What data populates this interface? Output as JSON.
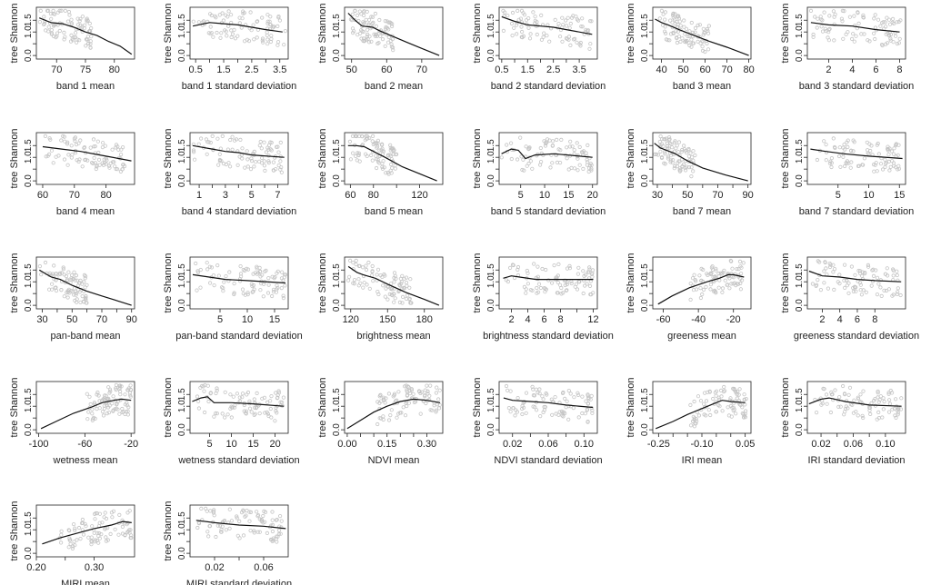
{
  "colors": {
    "points": "#c4c4c4",
    "line": "#111111",
    "axis": "#222222"
  },
  "y_label": "tree Shannon",
  "chart_data": [
    {
      "type": "scatter",
      "xlabel": "band 1 mean",
      "xticks": [
        70,
        75,
        80
      ],
      "xlim": [
        66.5,
        83.5
      ],
      "line": [
        [
          67,
          1.6
        ],
        [
          69,
          1.4
        ],
        [
          71,
          1.35
        ],
        [
          73,
          1.2
        ],
        [
          75,
          1.0
        ],
        [
          77,
          0.85
        ],
        [
          79,
          0.6
        ],
        [
          81,
          0.4
        ],
        [
          83,
          0.05
        ]
      ],
      "cloud": [
        67,
        76
      ]
    },
    {
      "type": "scatter",
      "xlabel": "band 1 standard deviation",
      "xticks": [
        0.5,
        1.5,
        2.5,
        3.5
      ],
      "xtick_labels": [
        "0.5",
        "1.5",
        "2.5",
        "3.5"
      ],
      "xtick_minor": [
        1,
        2,
        3
      ],
      "xlim": [
        0.3,
        3.8
      ],
      "line": [
        [
          0.4,
          1.25
        ],
        [
          1.0,
          1.4
        ],
        [
          1.5,
          1.35
        ],
        [
          2.0,
          1.3
        ],
        [
          2.5,
          1.2
        ],
        [
          3.0,
          1.1
        ],
        [
          3.6,
          1.0
        ]
      ],
      "cloud": [
        0.4,
        3.7
      ]
    },
    {
      "type": "scatter",
      "xlabel": "band 2 mean",
      "xticks": [
        50,
        60,
        70
      ],
      "xlim": [
        48,
        76
      ],
      "line": [
        [
          49,
          1.8
        ],
        [
          51,
          1.5
        ],
        [
          53,
          1.25
        ],
        [
          56,
          1.2
        ],
        [
          58,
          1.05
        ],
        [
          62,
          0.8
        ],
        [
          66,
          0.55
        ],
        [
          70,
          0.3
        ],
        [
          75,
          0.0
        ]
      ],
      "cloud": [
        49,
        62
      ]
    },
    {
      "type": "scatter",
      "xlabel": "band 2 standard deviation",
      "xticks": [
        0.5,
        1.5,
        2.5,
        3.5
      ],
      "xtick_labels": [
        "0.5",
        "1.5",
        "2.5",
        "3.5"
      ],
      "xtick_minor": [
        1,
        2,
        3
      ],
      "xlim": [
        0.4,
        4.2
      ],
      "line": [
        [
          0.5,
          1.65
        ],
        [
          1.0,
          1.45
        ],
        [
          1.5,
          1.3
        ],
        [
          2.0,
          1.25
        ],
        [
          2.5,
          1.2
        ],
        [
          3.0,
          1.1
        ],
        [
          4.0,
          0.9
        ]
      ],
      "cloud": [
        0.5,
        4.0
      ]
    },
    {
      "type": "scatter",
      "xlabel": "band 3 mean",
      "xticks": [
        40,
        50,
        60,
        70,
        80
      ],
      "xlim": [
        36,
        81
      ],
      "line": [
        [
          37,
          1.55
        ],
        [
          40,
          1.4
        ],
        [
          43,
          1.3
        ],
        [
          48,
          1.1
        ],
        [
          55,
          0.85
        ],
        [
          62,
          0.6
        ],
        [
          70,
          0.35
        ],
        [
          80,
          0.0
        ]
      ],
      "cloud": [
        37,
        62
      ]
    },
    {
      "type": "scatter",
      "xlabel": "band 3 standard deviation",
      "xticks": [
        2,
        4,
        6,
        8
      ],
      "xlim": [
        0.2,
        8.5
      ],
      "line": [
        [
          0.5,
          1.4
        ],
        [
          2,
          1.3
        ],
        [
          4,
          1.25
        ],
        [
          6,
          1.1
        ],
        [
          8,
          1.0
        ]
      ],
      "cloud": [
        0.5,
        8.2
      ]
    },
    {
      "type": "scatter",
      "xlabel": "band 4 mean",
      "xticks": [
        60,
        70,
        80
      ],
      "xlim": [
        58,
        89
      ],
      "line": [
        [
          60,
          1.45
        ],
        [
          66,
          1.35
        ],
        [
          72,
          1.25
        ],
        [
          78,
          1.1
        ],
        [
          84,
          0.95
        ],
        [
          88,
          0.85
        ]
      ],
      "cloud": [
        60,
        86
      ]
    },
    {
      "type": "scatter",
      "xlabel": "band 4 standard deviation",
      "xticks": [
        1,
        2,
        3,
        4,
        5,
        6,
        7
      ],
      "xtick_labels": [
        "1",
        "",
        "3",
        "",
        "5",
        "",
        "7"
      ],
      "xlim": [
        0.3,
        7.8
      ],
      "line": [
        [
          0.5,
          1.5
        ],
        [
          2,
          1.35
        ],
        [
          3,
          1.25
        ],
        [
          4,
          1.2
        ],
        [
          5,
          1.1
        ],
        [
          7.5,
          1.0
        ]
      ],
      "cloud": [
        0.5,
        7.4
      ]
    },
    {
      "type": "scatter",
      "xlabel": "band 5 mean",
      "xticks": [
        60,
        80,
        120
      ],
      "xtick_labels": [
        "60",
        "80",
        "120"
      ],
      "xtick_minor": [
        100
      ],
      "xlim": [
        55,
        140
      ],
      "line": [
        [
          58,
          1.5
        ],
        [
          65,
          1.5
        ],
        [
          72,
          1.45
        ],
        [
          80,
          1.25
        ],
        [
          90,
          1.0
        ],
        [
          105,
          0.6
        ],
        [
          120,
          0.3
        ],
        [
          135,
          0.0
        ]
      ],
      "cloud": [
        58,
        100
      ]
    },
    {
      "type": "scatter",
      "xlabel": "band 5 standard deviation",
      "xticks": [
        5,
        10,
        15,
        20
      ],
      "xlim": [
        0.5,
        21
      ],
      "line": [
        [
          1,
          1.15
        ],
        [
          3,
          1.35
        ],
        [
          4.5,
          1.3
        ],
        [
          6,
          0.95
        ],
        [
          8,
          1.1
        ],
        [
          12,
          1.15
        ],
        [
          20,
          1.0
        ]
      ],
      "cloud": [
        1,
        20
      ]
    },
    {
      "type": "scatter",
      "xlabel": "band 7 mean",
      "xticks": [
        30,
        50,
        70,
        90
      ],
      "xtick_minor": [
        40,
        60,
        80
      ],
      "xlim": [
        27,
        92
      ],
      "line": [
        [
          28,
          1.6
        ],
        [
          32,
          1.4
        ],
        [
          36,
          1.3
        ],
        [
          42,
          1.15
        ],
        [
          50,
          0.85
        ],
        [
          60,
          0.55
        ],
        [
          75,
          0.25
        ],
        [
          90,
          0.0
        ]
      ],
      "cloud": [
        28,
        55
      ]
    },
    {
      "type": "scatter",
      "xlabel": "band 7 standard deviation",
      "xticks": [
        5,
        10,
        15
      ],
      "xlim": [
        0,
        16
      ],
      "line": [
        [
          0.5,
          1.35
        ],
        [
          3,
          1.25
        ],
        [
          6,
          1.15
        ],
        [
          10,
          1.05
        ],
        [
          15.5,
          0.95
        ]
      ],
      "cloud": [
        0.5,
        15
      ]
    },
    {
      "type": "scatter",
      "xlabel": "pan-band mean",
      "xticks": [
        30,
        50,
        70,
        90
      ],
      "xtick_minor": [
        40,
        60,
        80
      ],
      "xlim": [
        26,
        92
      ],
      "line": [
        [
          28,
          1.5
        ],
        [
          32,
          1.35
        ],
        [
          36,
          1.2
        ],
        [
          42,
          1.1
        ],
        [
          50,
          0.85
        ],
        [
          60,
          0.6
        ],
        [
          70,
          0.4
        ],
        [
          80,
          0.2
        ],
        [
          90,
          0.0
        ]
      ],
      "cloud": [
        28,
        60
      ]
    },
    {
      "type": "scatter",
      "xlabel": "pan-band standard deviation",
      "xticks": [
        5,
        10,
        15
      ],
      "xlim": [
        -0.5,
        17.5
      ],
      "line": [
        [
          0,
          1.3
        ],
        [
          3,
          1.2
        ],
        [
          6,
          1.1
        ],
        [
          10,
          1.05
        ],
        [
          17,
          0.95
        ]
      ],
      "cloud": [
        0,
        17
      ]
    },
    {
      "type": "scatter",
      "xlabel": "brightness mean",
      "xticks": [
        120,
        150,
        180
      ],
      "xlim": [
        115,
        195
      ],
      "line": [
        [
          118,
          1.65
        ],
        [
          125,
          1.4
        ],
        [
          130,
          1.3
        ],
        [
          140,
          1.15
        ],
        [
          150,
          0.9
        ],
        [
          165,
          0.55
        ],
        [
          180,
          0.25
        ],
        [
          192,
          0.0
        ]
      ],
      "cloud": [
        118,
        170
      ]
    },
    {
      "type": "scatter",
      "xlabel": "brightness standard deviation",
      "xticks": [
        2,
        4,
        6,
        8,
        12
      ],
      "xtick_minor": [
        10
      ],
      "xlim": [
        0.5,
        12.5
      ],
      "line": [
        [
          1,
          1.15
        ],
        [
          2,
          1.25
        ],
        [
          3,
          1.2
        ],
        [
          5,
          1.1
        ],
        [
          8,
          1.1
        ],
        [
          12,
          1.1
        ]
      ],
      "cloud": [
        1,
        12
      ]
    },
    {
      "type": "scatter",
      "xlabel": "greeness mean",
      "xticks": [
        -60,
        -40,
        -20
      ],
      "xlim": [
        -66,
        -10
      ],
      "line": [
        [
          -63,
          0.05
        ],
        [
          -55,
          0.4
        ],
        [
          -45,
          0.75
        ],
        [
          -35,
          1.0
        ],
        [
          -28,
          1.15
        ],
        [
          -23,
          1.3
        ],
        [
          -20,
          1.3
        ],
        [
          -14,
          1.2
        ]
      ],
      "cloud": [
        -45,
        -14
      ]
    },
    {
      "type": "scatter",
      "xlabel": "greeness standard deviation",
      "xticks": [
        2,
        4,
        6,
        8
      ],
      "xlim": [
        0.3,
        11.5
      ],
      "line": [
        [
          0.5,
          1.45
        ],
        [
          2,
          1.25
        ],
        [
          4,
          1.2
        ],
        [
          6,
          1.1
        ],
        [
          8,
          1.05
        ],
        [
          11,
          1.0
        ]
      ],
      "cloud": [
        0.5,
        11
      ]
    },
    {
      "type": "scatter",
      "xlabel": "wetness mean",
      "xticks": [
        -100,
        -60,
        -20
      ],
      "xlim": [
        -102,
        -17
      ],
      "line": [
        [
          -98,
          0.05
        ],
        [
          -85,
          0.35
        ],
        [
          -70,
          0.7
        ],
        [
          -55,
          0.95
        ],
        [
          -45,
          1.15
        ],
        [
          -35,
          1.25
        ],
        [
          -28,
          1.3
        ],
        [
          -20,
          1.25
        ]
      ],
      "cloud": [
        -60,
        -20
      ]
    },
    {
      "type": "scatter",
      "xlabel": "wetness standard deviation",
      "xticks": [
        5,
        10,
        15,
        20
      ],
      "xlim": [
        0.5,
        23
      ],
      "line": [
        [
          1,
          1.2
        ],
        [
          3,
          1.35
        ],
        [
          4.5,
          1.4
        ],
        [
          6,
          1.15
        ],
        [
          10,
          1.15
        ],
        [
          15,
          1.1
        ],
        [
          22,
          1.0
        ]
      ],
      "cloud": [
        1,
        22
      ]
    },
    {
      "type": "scatter",
      "xlabel": "NDVI mean",
      "xticks": [
        0,
        0.15,
        0.3
      ],
      "xtick_labels": [
        "0.00",
        "0.15",
        "0.30"
      ],
      "xtick_minor": [
        0.05,
        0.1,
        0.2,
        0.25
      ],
      "xlim": [
        -0.01,
        0.36
      ],
      "line": [
        [
          0.0,
          0.05
        ],
        [
          0.05,
          0.4
        ],
        [
          0.1,
          0.75
        ],
        [
          0.15,
          1.0
        ],
        [
          0.2,
          1.2
        ],
        [
          0.25,
          1.3
        ],
        [
          0.3,
          1.25
        ],
        [
          0.35,
          1.15
        ]
      ],
      "cloud": [
        0.1,
        0.35
      ]
    },
    {
      "type": "scatter",
      "xlabel": "NDVI standard deviation",
      "xticks": [
        0.02,
        0.06,
        0.1
      ],
      "xtick_labels": [
        "0.02",
        "0.06",
        "0.10"
      ],
      "xtick_minor": [
        0.04,
        0.08
      ],
      "xlim": [
        0.005,
        0.115
      ],
      "line": [
        [
          0.01,
          1.35
        ],
        [
          0.02,
          1.25
        ],
        [
          0.04,
          1.2
        ],
        [
          0.06,
          1.15
        ],
        [
          0.08,
          1.05
        ],
        [
          0.11,
          0.95
        ]
      ],
      "cloud": [
        0.01,
        0.11
      ]
    },
    {
      "type": "scatter",
      "xlabel": "IRI mean",
      "xticks": [
        -0.25,
        -0.1,
        0.05
      ],
      "xtick_labels": [
        "-0.25",
        "-0.10",
        "0.05"
      ],
      "xtick_minor": [
        -0.2,
        -0.15,
        -0.05,
        0
      ],
      "xlim": [
        -0.27,
        0.07
      ],
      "line": [
        [
          -0.26,
          0.05
        ],
        [
          -0.2,
          0.35
        ],
        [
          -0.15,
          0.65
        ],
        [
          -0.1,
          0.9
        ],
        [
          -0.06,
          1.1
        ],
        [
          -0.03,
          1.25
        ],
        [
          0.0,
          1.2
        ],
        [
          0.05,
          1.15
        ]
      ],
      "cloud": [
        -0.15,
        0.06
      ]
    },
    {
      "type": "scatter",
      "xlabel": "IRI standard deviation",
      "xticks": [
        0.02,
        0.06,
        0.1
      ],
      "xtick_labels": [
        "0.02",
        "0.06",
        "0.10"
      ],
      "xtick_minor": [
        0.04,
        0.08
      ],
      "xlim": [
        0.003,
        0.125
      ],
      "line": [
        [
          0.005,
          1.1
        ],
        [
          0.02,
          1.3
        ],
        [
          0.03,
          1.35
        ],
        [
          0.05,
          1.2
        ],
        [
          0.08,
          1.05
        ],
        [
          0.12,
          1.0
        ]
      ],
      "cloud": [
        0.005,
        0.12
      ]
    },
    {
      "type": "scatter",
      "xlabel": "MIRI mean",
      "xticks": [
        0.2,
        0.3
      ],
      "xtick_labels": [
        "0.20",
        "0.30"
      ],
      "xtick_minor": [
        0.25
      ],
      "xlim": [
        0.2,
        0.37
      ],
      "line": [
        [
          0.21,
          0.4
        ],
        [
          0.24,
          0.65
        ],
        [
          0.27,
          0.85
        ],
        [
          0.3,
          1.05
        ],
        [
          0.33,
          1.2
        ],
        [
          0.35,
          1.35
        ],
        [
          0.365,
          1.3
        ]
      ],
      "cloud": [
        0.24,
        0.365
      ]
    },
    {
      "type": "scatter",
      "xlabel": "MIRI standard deviation",
      "xticks": [
        0.02,
        0.06
      ],
      "xtick_labels": [
        "0.02",
        "0.06"
      ],
      "xtick_minor": [
        0.04
      ],
      "xlim": [
        0.0,
        0.08
      ],
      "line": [
        [
          0.005,
          1.4
        ],
        [
          0.02,
          1.3
        ],
        [
          0.04,
          1.2
        ],
        [
          0.06,
          1.15
        ],
        [
          0.078,
          1.05
        ]
      ],
      "cloud": [
        0.005,
        0.075
      ]
    }
  ]
}
